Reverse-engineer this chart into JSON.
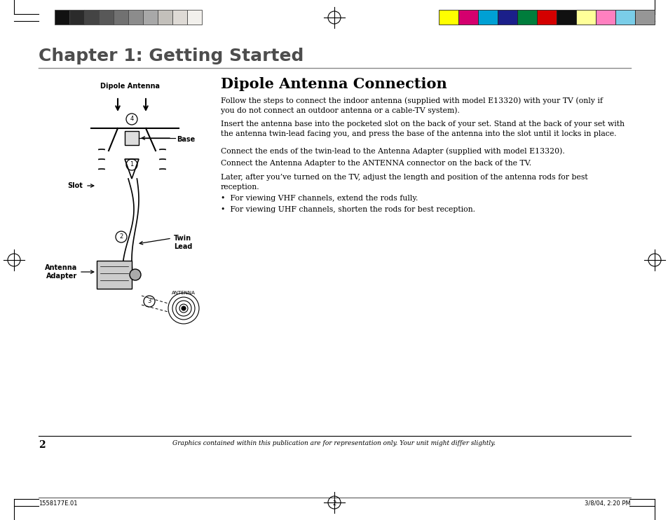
{
  "bg_color": "#ffffff",
  "chapter_title": "Chapter 1: Getting Started",
  "section_title": "Dipole Antenna Connection",
  "para1": "Follow the steps to connect the indoor antenna (supplied with model E13320) with your TV (only if\nyou do not connect an outdoor antenna or a cable-TV system).",
  "para2": "Insert the antenna base into the pocketed slot on the back of your set. Stand at the back of your set with\nthe antenna twin-lead facing you, and press the base of the antenna into the slot until it locks in place.",
  "para3": "Connect the ends of the twin-lead to the Antenna Adapter (supplied with model E13320).",
  "para4": "Connect the Antenna Adapter to the ANTENNA connector on the back of the TV.",
  "para5": "Later, after you’ve turned on the TV, adjust the length and position of the antenna rods for best\nreception.",
  "bullet1": "For viewing VHF channels, extend the rods fully.",
  "bullet2": "For viewing UHF channels, shorten the rods for best reception.",
  "footer_page": "2",
  "footer_italic": "Graphics contained within this publication are for representation only. Your unit might differ slightly.",
  "bottom_left": "1558177E.01",
  "bottom_center": "2",
  "bottom_right": "3/8/04, 2:20 PM",
  "gray_colors": [
    "#111111",
    "#2b2b2b",
    "#444444",
    "#585858",
    "#717171",
    "#8c8c8c",
    "#a8a8a8",
    "#c3c0bb",
    "#dedad5",
    "#f2f0ec"
  ],
  "color_colors": [
    "#ffff00",
    "#d4006e",
    "#00a0d4",
    "#1b1f8a",
    "#007d3c",
    "#d40000",
    "#101010",
    "#ffff99",
    "#ff80c0",
    "#7acde8",
    "#969696"
  ]
}
